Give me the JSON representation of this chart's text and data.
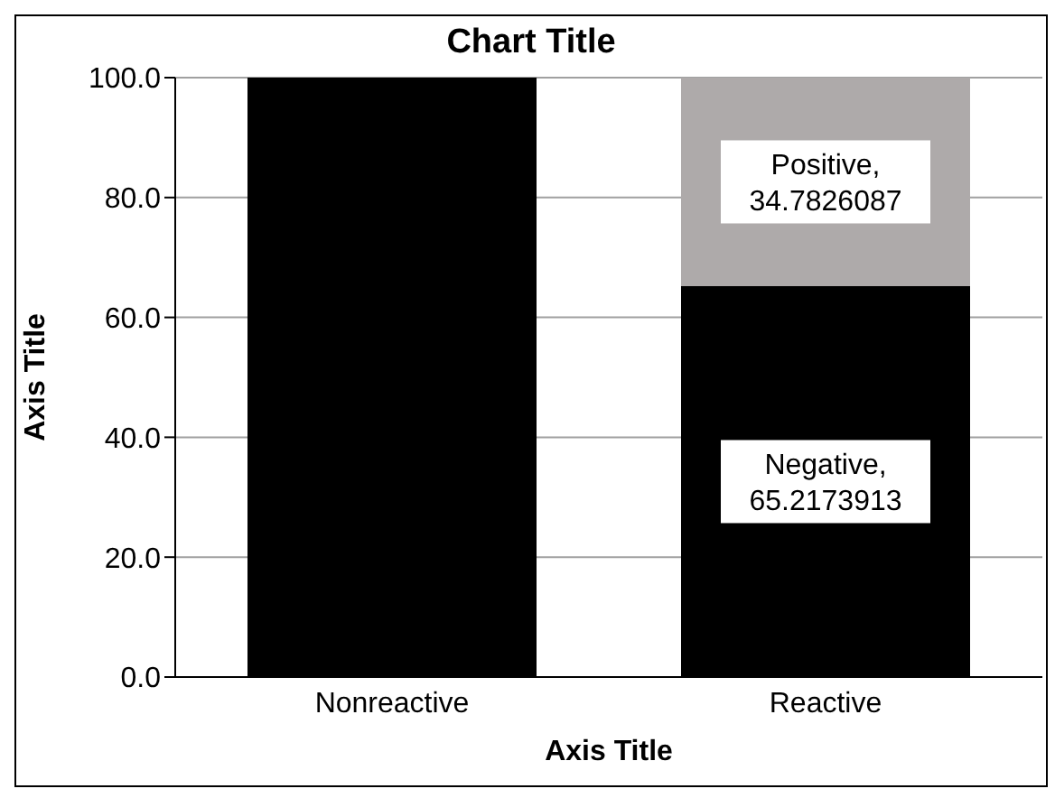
{
  "chart_data": {
    "type": "bar",
    "title": "Chart Title",
    "xlabel": "Axis Title",
    "ylabel": "Axis Title",
    "categories": [
      "Nonreactive",
      "Reactive"
    ],
    "stacked": true,
    "series": [
      {
        "name": "Negative",
        "color": "#000000",
        "values": [
          100,
          65.2173913
        ],
        "value_labels": [
          null,
          ",\n65.2173913"
        ]
      },
      {
        "name": "Positive",
        "color": "#aeaaaa",
        "values": [
          null,
          34.7826087
        ],
        "value_labels": [
          null,
          ",\n34.7826087"
        ]
      }
    ],
    "ylim": [
      0,
      100
    ],
    "yticks": [
      {
        "value": 0,
        "label": "0.0"
      },
      {
        "value": 20,
        "label": "20.0"
      },
      {
        "value": 40,
        "label": "40.0"
      },
      {
        "value": 60,
        "label": "60.0"
      },
      {
        "value": 80,
        "label": "80.0"
      },
      {
        "value": 100,
        "label": "100.0"
      }
    ],
    "grid": "y",
    "legend": false
  }
}
